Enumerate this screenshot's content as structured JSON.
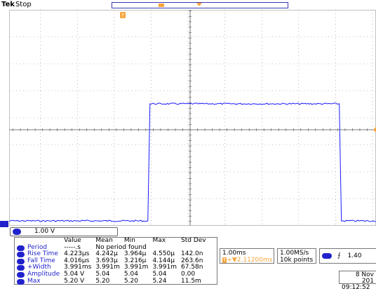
{
  "header": {
    "brand": "Tek",
    "mode": "Stop"
  },
  "markers": {
    "trigger_position": "T",
    "channel_marker": "1"
  },
  "channel": {
    "label": "1",
    "scale": "1.00 V"
  },
  "measurements": {
    "headers": [
      "",
      "Value",
      "Mean",
      "Min",
      "Max",
      "Std Dev"
    ],
    "rows": [
      {
        "name": "Period",
        "value": "-----.s",
        "note": "No period found"
      },
      {
        "name": "Rise Time",
        "value": "4.223µs",
        "mean": "4.242µ",
        "min": "3.964µ",
        "max": "4.550µ",
        "std": "142.0n"
      },
      {
        "name": "Fall Time",
        "value": "4.016µs",
        "mean": "3.693µ",
        "min": "3.216µ",
        "max": "4.144µ",
        "std": "263.6n"
      },
      {
        "name": "+Width",
        "value": "3.991ms",
        "mean": "3.991m",
        "min": "3.991m",
        "max": "3.991m",
        "std": "67.58n"
      },
      {
        "name": "Amplitude",
        "value": "5.04 V",
        "mean": "5.04",
        "min": "5.04",
        "max": "5.04",
        "std": "0.00"
      },
      {
        "name": "Max",
        "value": "5.20 V",
        "mean": "5.20",
        "min": "5.20",
        "max": "5.24",
        "std": "11.5m"
      }
    ]
  },
  "timebase": {
    "scale": "1.00ms",
    "delay": "2.11200ms",
    "delay_prefix": "+▼"
  },
  "acquisition": {
    "sample_rate": "1.00MS/s",
    "record_length": "10k points"
  },
  "trigger": {
    "source": "1",
    "slope": "⨍",
    "level": "1.40"
  },
  "datetime": {
    "date": "8 Nov 201",
    "time": "09:12:52"
  },
  "colors": {
    "trace": "#1a1aff",
    "grid": "#888888",
    "accent": "#f7a43c",
    "channel": "#2222cc"
  },
  "waveform": {
    "low_level_divs": 0.25,
    "high_level_divs": 4.1,
    "rise_division": 3.95,
    "fall_division": 9.1,
    "center_reference_divs": 4
  }
}
